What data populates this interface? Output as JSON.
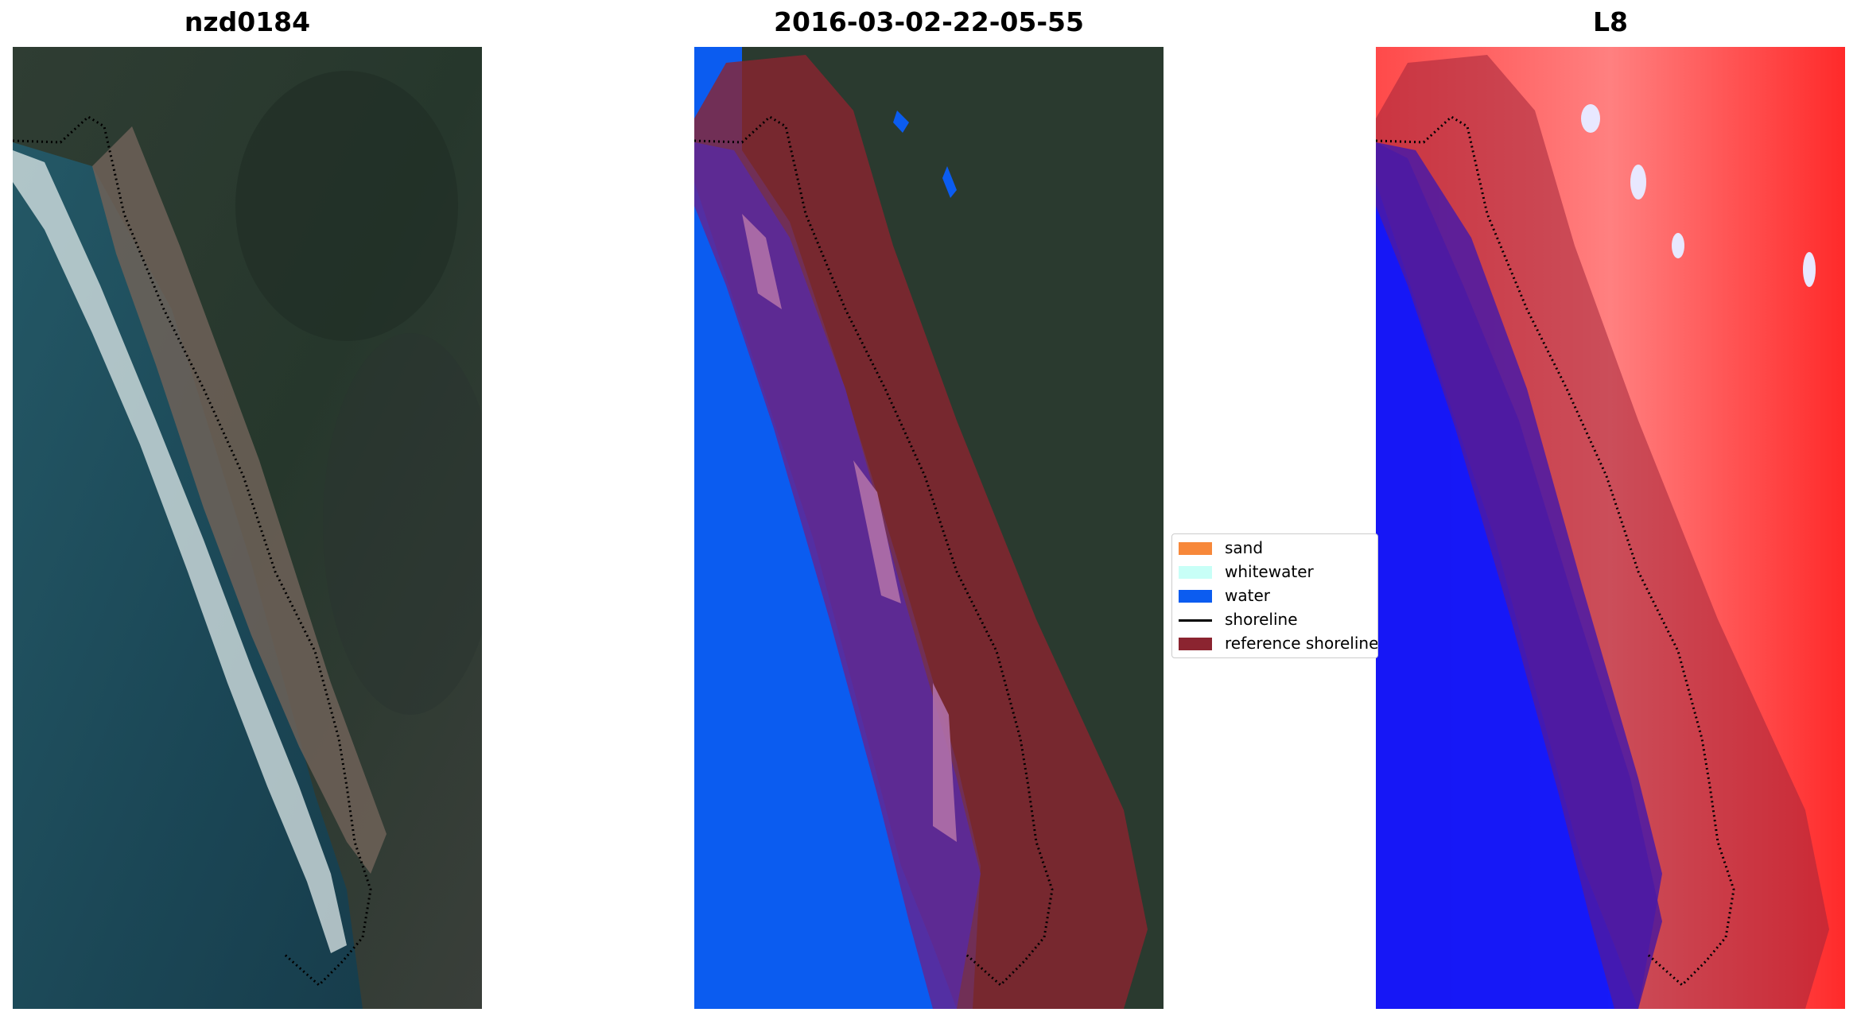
{
  "titles": {
    "left": "nzd0184",
    "middle": "2016-03-02-22-05-55",
    "right": "L8"
  },
  "legend": {
    "items": [
      {
        "label": "sand",
        "kind": "patch",
        "color": "#f7883a"
      },
      {
        "label": "whitewater",
        "kind": "patch",
        "color": "#c8fff7"
      },
      {
        "label": "water",
        "kind": "patch",
        "color": "#0b5cf0"
      },
      {
        "label": "shoreline",
        "kind": "line",
        "color": "#000000"
      },
      {
        "label": "reference shoreline buffer",
        "kind": "patch",
        "color": "#8b2430"
      }
    ]
  },
  "colors": {
    "satellite_land": "#2a3a2f",
    "satellite_water": "#1d4a5a",
    "sand_brown": "#7a6a5e",
    "surf_white": "#e8f0f0",
    "classified_water": "#0b5cf0",
    "buffer_maroon": "#8b2430",
    "index_red": "#ff2a2a",
    "index_blue": "#0a14ff"
  }
}
